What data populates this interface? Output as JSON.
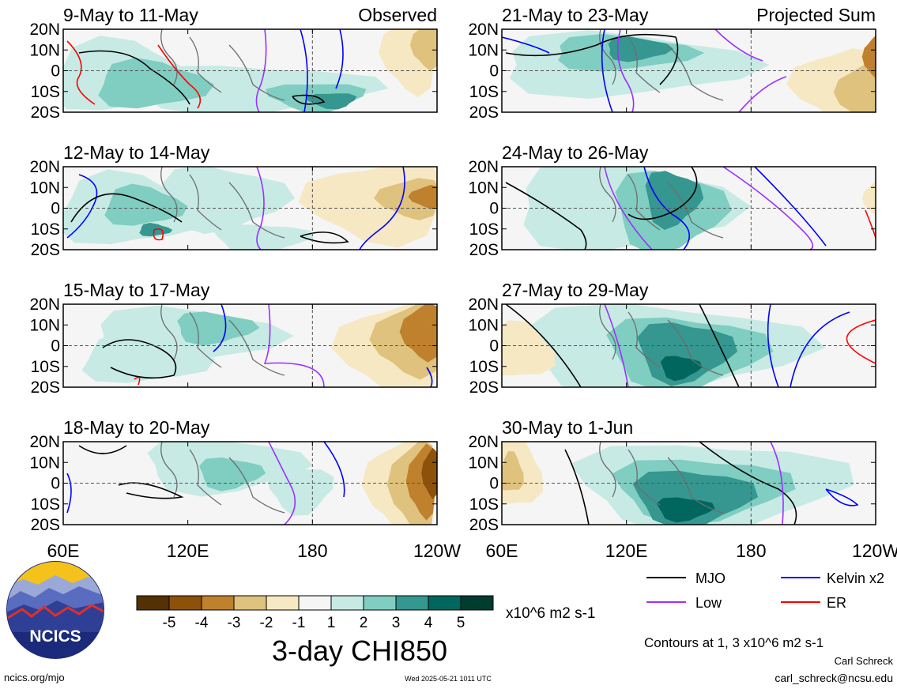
{
  "panels": [
    {
      "title": "9-May to 11-May",
      "tag": "Observed"
    },
    {
      "title": "12-May to 14-May",
      "tag": ""
    },
    {
      "title": "15-May to 17-May",
      "tag": ""
    },
    {
      "title": "18-May to 20-May",
      "tag": ""
    },
    {
      "title": "21-May to 23-May",
      "tag": "Projected Sum"
    },
    {
      "title": "24-May to 26-May",
      "tag": ""
    },
    {
      "title": "27-May to 29-May",
      "tag": ""
    },
    {
      "title": "30-May to 1-Jun",
      "tag": ""
    }
  ],
  "lat_labels": [
    "20N",
    "10N",
    "0",
    "10S",
    "20S"
  ],
  "lon_labels": [
    "60E",
    "120E",
    "180",
    "120W"
  ],
  "colorbar": {
    "labels": [
      "-5",
      "-4",
      "-3",
      "-2",
      "-1",
      "1",
      "2",
      "3",
      "4",
      "5"
    ],
    "colors": [
      "#543005",
      "#8c510a",
      "#bf812d",
      "#dfc27d",
      "#f6e8c3",
      "#f5f5f5",
      "#c7eae5",
      "#80cdc1",
      "#35978f",
      "#01665e",
      "#003c30"
    ],
    "units": "x10^6 m2 s-1",
    "title": "3-day CHI850"
  },
  "legend": {
    "items": [
      {
        "label": "MJO",
        "color": "#000000"
      },
      {
        "label": "Kelvin x2",
        "color": "#0000ff"
      },
      {
        "label": "Low",
        "color": "#9b30ff"
      },
      {
        "label": "ER",
        "color": "#ff0000"
      }
    ],
    "note": "Contours at 1, 3 x10^6 m2 s-1"
  },
  "author": "Carl Schreck",
  "email": "carl_schreck@ncsu.edu",
  "site": "ncics.org/mjo",
  "timestamp": "Wed 2025-05-21 1011 UTC",
  "logo_text": "NCICS"
}
